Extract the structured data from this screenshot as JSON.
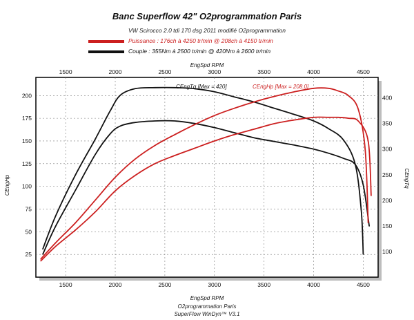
{
  "header": {
    "title": "Banc Superflow 42\" O2programmation Paris",
    "subtitle": "VW Scirocco 2.0 tdi 170 dsg 2011 modifié O2programmation"
  },
  "legend": [
    {
      "label": "Puissance : 176ch à 4250 tr/min @ 208ch à 4150 tr/min",
      "color": "#cc1f1f"
    },
    {
      "label": "Couple : 355Nm à 2500 tr/min @ 420Nm à 2600 tr/min",
      "color": "#111111"
    }
  ],
  "footer": {
    "line1": "O2programmation Paris",
    "line2": "SuperFlow WinDyn™ V3.1"
  },
  "chart_data": {
    "type": "line",
    "xlabel_top": "EngSpd RPM",
    "xlabel_bottom": "EngSpd RPM",
    "ylabel_left": "CEngHp",
    "ylabel_right": "CEngTq",
    "xlim": [
      1200,
      4650
    ],
    "ylim_left": [
      0,
      220
    ],
    "ylim_right": [
      50,
      440
    ],
    "x_ticks_top": [
      "1500",
      "2000",
      "2500",
      "3000",
      "3500",
      "4000",
      "4500"
    ],
    "x_ticks_bottom": [
      "1500",
      "2000",
      "2500",
      "3000",
      "3500",
      "4000",
      "4500"
    ],
    "y_ticks_left": [
      "25",
      "50",
      "75",
      "100",
      "125",
      "150",
      "175",
      "200"
    ],
    "y_ticks_right": [
      "100",
      "150",
      "200",
      "250",
      "300",
      "350",
      "400"
    ],
    "grid": true,
    "inline_labels": [
      {
        "text": "CEngTq [Max = 420]",
        "color": "#111111"
      },
      {
        "text": "CEngHp [Max = 208.0]",
        "color": "#cc1f1f"
      }
    ],
    "series": [
      {
        "color": "#111111",
        "axis": "right",
        "x": [
          1270,
          1400,
          1600,
          1800,
          1950,
          2050,
          2200,
          2400,
          2600,
          2800,
          3000,
          3200,
          3400,
          3600,
          3800,
          4000,
          4150,
          4300,
          4420,
          4480,
          4500
        ],
        "values": [
          105,
          170,
          250,
          320,
          375,
          405,
          418,
          420,
          420,
          418,
          412,
          402,
          392,
          380,
          368,
          355,
          340,
          318,
          270,
          180,
          95
        ]
      },
      {
        "color": "#111111",
        "axis": "right",
        "x": [
          1270,
          1400,
          1600,
          1800,
          1950,
          2050,
          2200,
          2400,
          2600,
          2800,
          3000,
          3200,
          3400,
          3600,
          3800,
          4000,
          4150,
          4300,
          4420,
          4500,
          4560
        ],
        "values": [
          95,
          150,
          220,
          290,
          330,
          345,
          352,
          355,
          355,
          350,
          342,
          332,
          322,
          315,
          308,
          300,
          292,
          282,
          270,
          230,
          150
        ]
      },
      {
        "color": "#cc1f1f",
        "axis": "left",
        "x": [
          1250,
          1400,
          1600,
          1800,
          2000,
          2200,
          2400,
          2600,
          2800,
          3000,
          3200,
          3400,
          3600,
          3800,
          4000,
          4150,
          4250,
          4350,
          4450,
          4520,
          4550
        ],
        "values": [
          20,
          38,
          60,
          85,
          110,
          130,
          145,
          157,
          168,
          178,
          186,
          193,
          199,
          204,
          208,
          208,
          205,
          200,
          185,
          140,
          60
        ]
      },
      {
        "color": "#cc1f1f",
        "axis": "left",
        "x": [
          1250,
          1400,
          1600,
          1800,
          2000,
          2200,
          2400,
          2600,
          2800,
          3000,
          3200,
          3400,
          3600,
          3800,
          4000,
          4150,
          4250,
          4350,
          4450,
          4550,
          4580
        ],
        "values": [
          18,
          34,
          52,
          72,
          95,
          112,
          125,
          134,
          142,
          150,
          157,
          163,
          169,
          173,
          176,
          176,
          176,
          175,
          172,
          150,
          90
        ]
      }
    ]
  }
}
